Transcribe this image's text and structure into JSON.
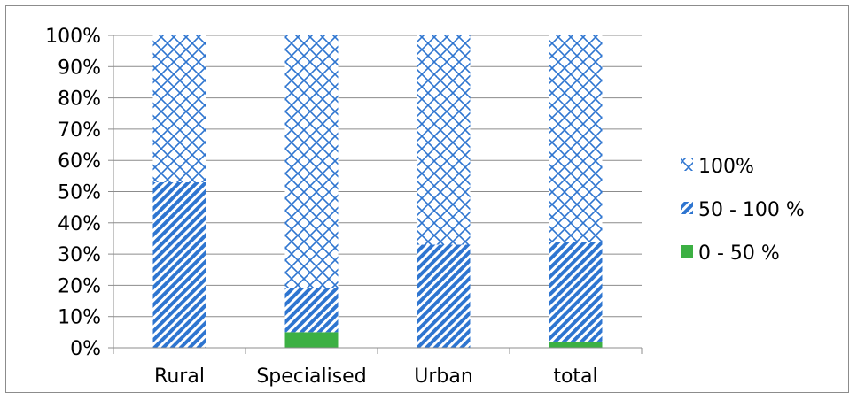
{
  "chart_data": {
    "type": "bar",
    "stacked": true,
    "percent_stacked": true,
    "categories": [
      "Rural",
      "Specialised",
      "Urban",
      "total"
    ],
    "series": [
      {
        "name": "0 - 50 %",
        "values": [
          0,
          5,
          0,
          2
        ],
        "color": "#3cb043",
        "pattern": "solid"
      },
      {
        "name": "50 - 100 %",
        "values": [
          53,
          14,
          33,
          32
        ],
        "color": "#2e75d0",
        "pattern": "diagonal-stripes"
      },
      {
        "name": "100%",
        "values": [
          47,
          81,
          67,
          66
        ],
        "color": "#2e75d0",
        "pattern": "crosshatch"
      }
    ],
    "ylim": [
      0,
      100
    ],
    "yticks": [
      "0%",
      "10%",
      "20%",
      "30%",
      "40%",
      "50%",
      "60%",
      "70%",
      "80%",
      "90%",
      "100%"
    ],
    "legend_order": [
      "100%",
      "50 - 100 %",
      "0 - 50 %"
    ],
    "legend_position": "right",
    "grid": true,
    "title": "",
    "xlabel": "",
    "ylabel": ""
  }
}
